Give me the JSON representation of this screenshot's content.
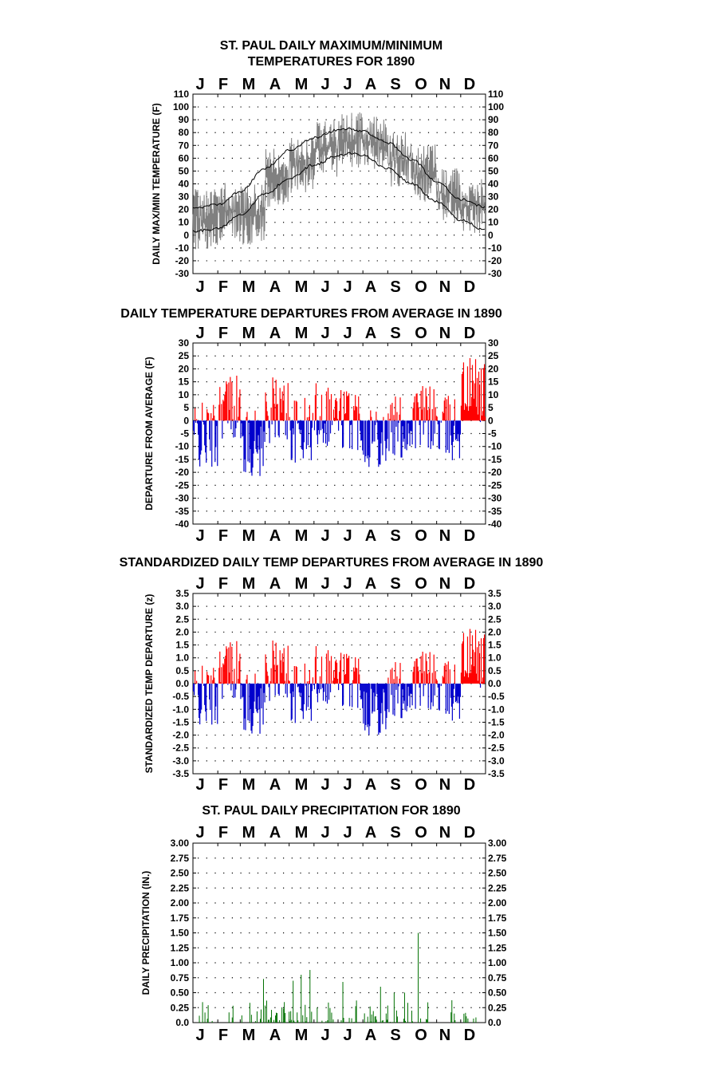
{
  "months": [
    "J",
    "F",
    "M",
    "A",
    "M",
    "J",
    "J",
    "A",
    "S",
    "O",
    "N",
    "D"
  ],
  "colors": {
    "max_min": "#808080",
    "normal_lines": "#000000",
    "above": "#ff0000",
    "below": "#0000cc",
    "precip": "#007000"
  },
  "chart_data": [
    {
      "type": "line",
      "title": [
        "ST. PAUL DAILY MAXIMUM/MINIMUM",
        "TEMPERATURES FOR 1890"
      ],
      "ylabel": "DAILY MAX/MIN TEMPERATURE (F)",
      "ylim": [
        -30,
        110
      ],
      "yticks": [
        "110",
        "100",
        "90",
        "80",
        "70",
        "60",
        "50",
        "40",
        "30",
        "20",
        "10",
        "0",
        "-10",
        "-20",
        "-30"
      ],
      "grid": true,
      "series": [
        {
          "role": "daily max/min (approximate, monthly mean max & min)",
          "x": [
            "Jan",
            "Feb",
            "Mar",
            "Apr",
            "May",
            "Jun",
            "Jul",
            "Aug",
            "Sep",
            "Oct",
            "Nov",
            "Dec"
          ],
          "max": [
            24,
            30,
            28,
            55,
            64,
            78,
            84,
            80,
            68,
            58,
            40,
            32
          ],
          "min": [
            2,
            8,
            5,
            33,
            45,
            58,
            64,
            62,
            50,
            37,
            22,
            12
          ]
        },
        {
          "role": "normal max",
          "x_doy": [
            1,
            32,
            60,
            91,
            121,
            152,
            182,
            196,
            213,
            244,
            274,
            305,
            335,
            365
          ],
          "values": [
            21,
            24,
            34,
            52,
            66,
            76,
            82,
            83,
            81,
            72,
            59,
            42,
            28,
            22
          ]
        },
        {
          "role": "normal min",
          "x_doy": [
            1,
            32,
            60,
            91,
            121,
            152,
            182,
            196,
            213,
            244,
            274,
            305,
            335,
            365
          ],
          "values": [
            3,
            5,
            16,
            32,
            44,
            55,
            62,
            64,
            62,
            52,
            40,
            26,
            12,
            4
          ]
        }
      ]
    },
    {
      "type": "bar",
      "title": [
        "DAILY TEMPERATURE DEPARTURES FROM AVERAGE IN 1890"
      ],
      "ylabel": "DEPARTURE FROM AVERAGE (F)",
      "ylim": [
        -40,
        30
      ],
      "yticks": [
        "30",
        "25",
        "20",
        "15",
        "10",
        "5",
        "0",
        "-5",
        "-10",
        "-15",
        "-20",
        "-25",
        "-30",
        "-35",
        "-40"
      ],
      "grid": true,
      "approximate_monthly_mean": [
        -6,
        6,
        -9,
        4,
        -4,
        3,
        1,
        -5,
        -3,
        1,
        -3,
        12
      ]
    },
    {
      "type": "bar",
      "title": [
        "STANDARDIZED DAILY TEMP DEPARTURES FROM AVERAGE IN 1890"
      ],
      "ylabel": "STANDARDIZED TEMP DEPARTURE (z)",
      "ylim": [
        -3.5,
        3.5
      ],
      "yticks": [
        "3.5",
        "3.0",
        "2.5",
        "2.0",
        "1.5",
        "1.0",
        "0.5",
        "0.0",
        "-0.5",
        "-1.0",
        "-1.5",
        "-2.0",
        "-2.5",
        "-3.0",
        "-3.5"
      ],
      "grid": true,
      "approximate_monthly_mean": [
        -0.5,
        0.6,
        -0.8,
        0.5,
        -0.4,
        0.4,
        0.2,
        -0.8,
        -0.3,
        0.1,
        -0.3,
        1.0
      ]
    },
    {
      "type": "bar",
      "title": [
        "ST. PAUL DAILY PRECIPITATION FOR 1890"
      ],
      "ylabel": "DAILY PRECIPITATION (IN.)",
      "ylim": [
        0,
        3.0
      ],
      "yticks": [
        "3.00",
        "2.75",
        "2.50",
        "2.25",
        "2.00",
        "1.75",
        "1.50",
        "1.25",
        "1.00",
        "0.75",
        "0.50",
        "0.25",
        "0.0"
      ],
      "grid": true,
      "largest_days": [
        {
          "day": 282,
          "value": 1.5
        },
        {
          "day": 147,
          "value": 0.88
        },
        {
          "day": 136,
          "value": 0.8
        },
        {
          "day": 89,
          "value": 0.73
        },
        {
          "day": 126,
          "value": 0.7
        },
        {
          "day": 188,
          "value": 0.68
        },
        {
          "day": 235,
          "value": 0.6
        },
        {
          "day": 252,
          "value": 0.5
        }
      ]
    }
  ]
}
